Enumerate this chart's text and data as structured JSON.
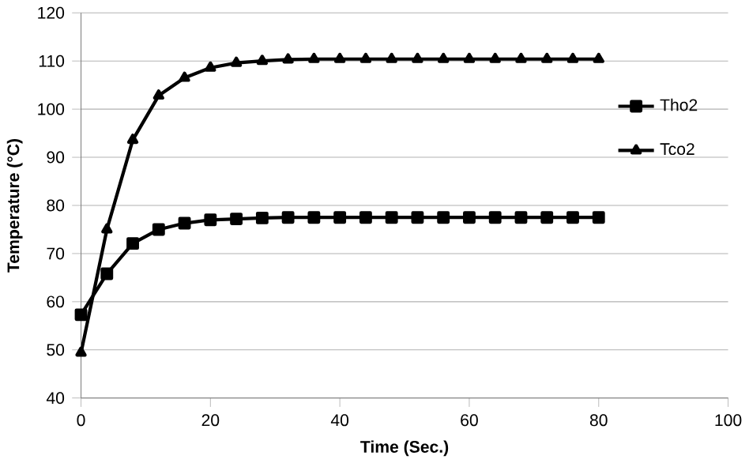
{
  "chart_data": {
    "type": "line",
    "xlabel": "Time (Sec.)",
    "ylabel": "Temperature (°C)",
    "x": [
      0,
      4,
      8,
      12,
      16,
      20,
      24,
      28,
      32,
      36,
      40,
      44,
      48,
      52,
      56,
      60,
      64,
      68,
      72,
      76,
      80
    ],
    "series": [
      {
        "name": "Tho2",
        "color": "#000000",
        "marker": "square",
        "values": [
          57.3,
          65.8,
          72.1,
          75.0,
          76.3,
          77.0,
          77.2,
          77.4,
          77.5,
          77.5,
          77.5,
          77.5,
          77.5,
          77.5,
          77.5,
          77.5,
          77.5,
          77.5,
          77.5,
          77.5,
          77.5
        ]
      },
      {
        "name": "Tco2",
        "color": "#000000",
        "marker": "triangle",
        "values": [
          49.4,
          75.0,
          93.6,
          102.8,
          106.5,
          108.6,
          109.6,
          110.0,
          110.3,
          110.4,
          110.4,
          110.4,
          110.4,
          110.4,
          110.4,
          110.4,
          110.4,
          110.4,
          110.4,
          110.4,
          110.4
        ]
      }
    ],
    "xlim": [
      0,
      100
    ],
    "xticks": [
      0,
      20,
      40,
      60,
      80,
      100
    ],
    "ylim": [
      40,
      120
    ],
    "yticks": [
      40,
      50,
      60,
      70,
      80,
      90,
      100,
      110,
      120
    ],
    "grid": "y",
    "legend": "right",
    "line_style": "solid"
  }
}
